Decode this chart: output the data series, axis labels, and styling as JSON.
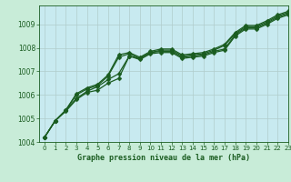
{
  "title": "Graphe pression niveau de la mer (hPa)",
  "background_color": "#c8ecd8",
  "plot_bg_color": "#c8eaf0",
  "grid_color": "#b0cccc",
  "line_color": "#1a5c20",
  "xlim": [
    -0.5,
    23
  ],
  "ylim": [
    1004,
    1009.8
  ],
  "xticks": [
    0,
    1,
    2,
    3,
    4,
    5,
    6,
    7,
    8,
    9,
    10,
    11,
    12,
    13,
    14,
    15,
    16,
    17,
    18,
    19,
    20,
    21,
    22,
    23
  ],
  "yticks": [
    1004,
    1005,
    1006,
    1007,
    1008,
    1009
  ],
  "series": [
    [
      1004.2,
      1004.9,
      1005.35,
      1005.85,
      1006.15,
      1006.35,
      1006.65,
      1006.9,
      1007.65,
      1007.55,
      1007.8,
      1007.85,
      1007.85,
      1007.6,
      1007.65,
      1007.7,
      1007.85,
      1007.95,
      1008.55,
      1008.85,
      1008.85,
      1009.05,
      1009.3,
      1009.45
    ],
    [
      1004.2,
      1004.9,
      1005.35,
      1006.0,
      1006.25,
      1006.4,
      1006.8,
      1007.6,
      1007.75,
      1007.55,
      1007.8,
      1007.9,
      1007.9,
      1007.65,
      1007.7,
      1007.75,
      1007.9,
      1008.1,
      1008.6,
      1008.9,
      1008.9,
      1009.1,
      1009.35,
      1009.5
    ],
    [
      1004.2,
      1004.9,
      1005.3,
      1005.8,
      1006.1,
      1006.2,
      1006.5,
      1006.7,
      1007.65,
      1007.5,
      1007.75,
      1007.8,
      1007.8,
      1007.55,
      1007.6,
      1007.65,
      1007.8,
      1007.9,
      1008.5,
      1008.8,
      1008.8,
      1009.0,
      1009.25,
      1009.4
    ],
    [
      1004.2,
      1004.9,
      1005.35,
      1006.05,
      1006.3,
      1006.45,
      1006.85,
      1007.7,
      1007.8,
      1007.6,
      1007.85,
      1007.95,
      1007.95,
      1007.7,
      1007.75,
      1007.8,
      1007.95,
      1008.15,
      1008.65,
      1008.95,
      1008.95,
      1009.15,
      1009.4,
      1009.55
    ]
  ],
  "markersize": 2.5,
  "linewidth": 0.9
}
